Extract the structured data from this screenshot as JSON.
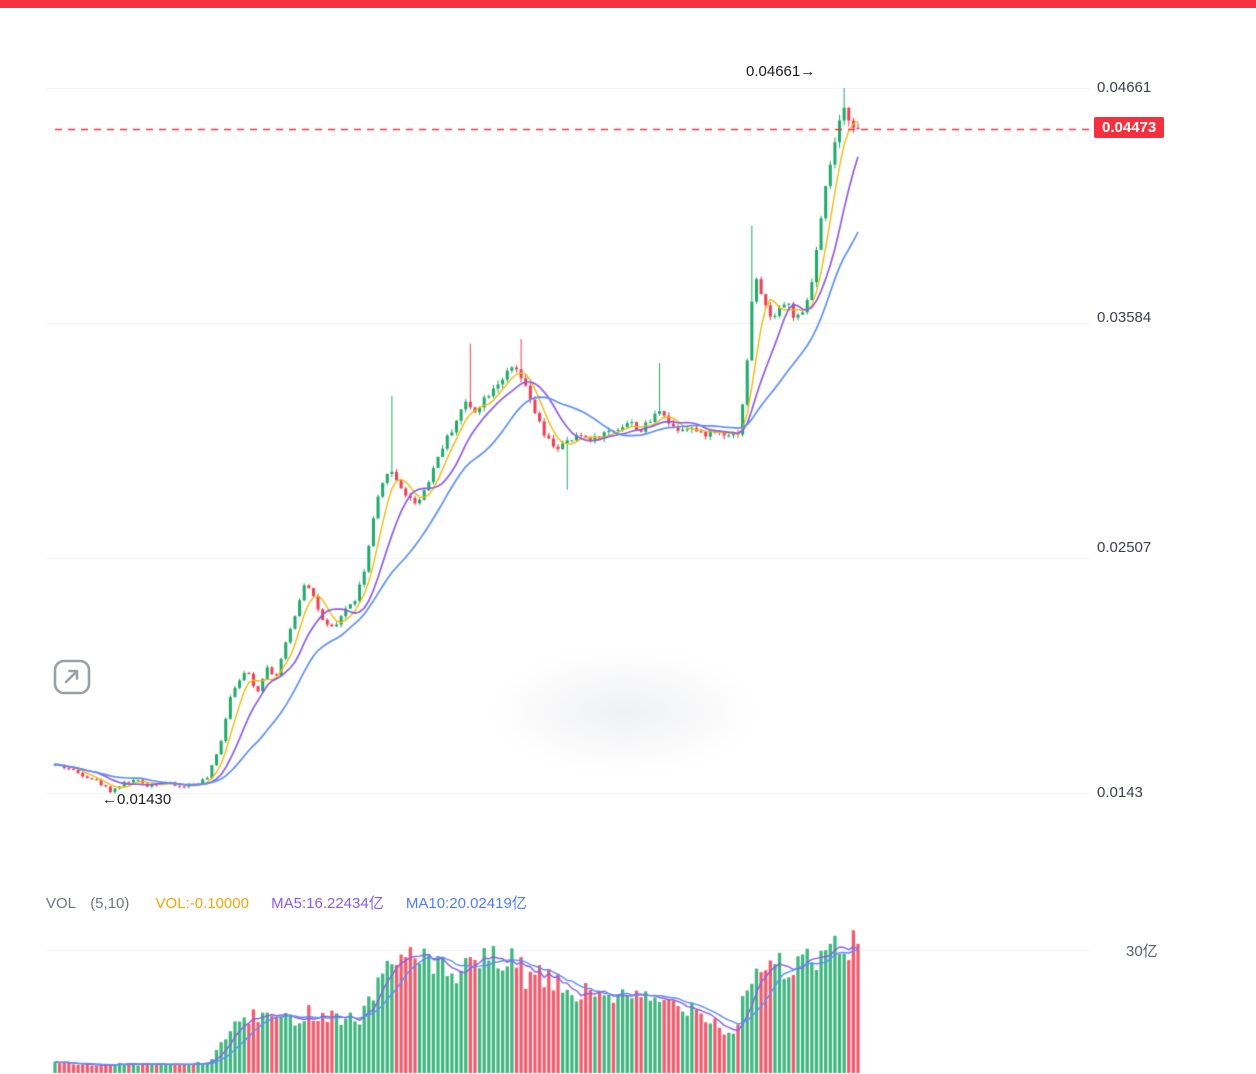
{
  "ui": {
    "top_bar_color": "#f5303e",
    "price_axis": {
      "ticks": [
        {
          "label": "0.04661",
          "value": 0.04661
        },
        {
          "label": "0.03584",
          "value": 0.03584
        },
        {
          "label": "0.02507",
          "value": 0.02507
        },
        {
          "label": "0.0143",
          "value": 0.0143
        }
      ]
    },
    "last_price_tag": {
      "label": "0.04473",
      "value": 0.04473,
      "bg": "#f5303e",
      "fg": "#ffffff"
    },
    "high_annotation": {
      "label": "0.04661→",
      "value": 0.04661
    },
    "low_annotation": {
      "label": "←0.01430",
      "value": 0.0143
    },
    "expand_button": {
      "icon": "expand-icon"
    },
    "volume_header": {
      "indicator": "VOL",
      "params": "(5,10)",
      "vol_label": "VOL:-0.10000",
      "ma5_label": "MA5:16.22434亿",
      "ma10_label": "MA10:20.02419亿",
      "colors": {
        "vol": "#f0a70a",
        "ma5": "#8b5ce8",
        "ma10": "#4f7df0"
      }
    },
    "volume_axis_tick": "30亿"
  },
  "chart_data": {
    "type": "candlestick",
    "title": "",
    "xlabel": "",
    "ylabel": "",
    "ylim": [
      0.0138,
      0.0475
    ],
    "y_ticks": [
      0.04661,
      0.03584,
      0.02507,
      0.0143
    ],
    "grid": true,
    "last_price": 0.04473,
    "session_high": 0.04661,
    "session_low": 0.0143,
    "candle_count": 175,
    "price_ma_periods": [
      5,
      10,
      20
    ],
    "volume_ma_periods": [
      5,
      10
    ],
    "volume_tick_value": 30,
    "volume_unit": "亿",
    "volume_last_ma5": 16.22434,
    "volume_last_ma10": 20.02419,
    "colors": {
      "up": "#1fa96a",
      "down": "#ee3e53",
      "ma_fast": "#f0b90b",
      "ma_mid": "#8b5ce8",
      "ma_slow": "#5b8ff9",
      "last_price_line": "#f5303e",
      "grid": "#f0f0f2"
    },
    "price_path": [
      [
        0.0,
        0.0156
      ],
      [
        0.015,
        0.01545
      ],
      [
        0.03,
        0.0152
      ],
      [
        0.05,
        0.0149
      ],
      [
        0.07,
        0.01438
      ],
      [
        0.085,
        0.01475
      ],
      [
        0.1,
        0.0149
      ],
      [
        0.115,
        0.01465
      ],
      [
        0.135,
        0.0148
      ],
      [
        0.155,
        0.01458
      ],
      [
        0.175,
        0.0147
      ],
      [
        0.19,
        0.015
      ],
      [
        0.205,
        0.0164
      ],
      [
        0.218,
        0.0187
      ],
      [
        0.228,
        0.0195
      ],
      [
        0.24,
        0.01985
      ],
      [
        0.252,
        0.0189
      ],
      [
        0.263,
        0.0201
      ],
      [
        0.275,
        0.0196
      ],
      [
        0.288,
        0.0212
      ],
      [
        0.3,
        0.0226
      ],
      [
        0.312,
        0.0241
      ],
      [
        0.322,
        0.0233
      ],
      [
        0.335,
        0.022
      ],
      [
        0.348,
        0.0218
      ],
      [
        0.36,
        0.0227
      ],
      [
        0.372,
        0.023
      ],
      [
        0.385,
        0.0244
      ],
      [
        0.4,
        0.0275
      ],
      [
        0.415,
        0.0292
      ],
      [
        0.428,
        0.0285
      ],
      [
        0.44,
        0.0278
      ],
      [
        0.452,
        0.0276
      ],
      [
        0.465,
        0.0286
      ],
      [
        0.48,
        0.03
      ],
      [
        0.495,
        0.031
      ],
      [
        0.51,
        0.0322
      ],
      [
        0.522,
        0.0318
      ],
      [
        0.535,
        0.0324
      ],
      [
        0.548,
        0.033
      ],
      [
        0.56,
        0.0334
      ],
      [
        0.572,
        0.0338
      ],
      [
        0.582,
        0.0332
      ],
      [
        0.595,
        0.032
      ],
      [
        0.61,
        0.0306
      ],
      [
        0.625,
        0.0301
      ],
      [
        0.64,
        0.0304
      ],
      [
        0.655,
        0.0307
      ],
      [
        0.67,
        0.0305
      ],
      [
        0.685,
        0.0308
      ],
      [
        0.7,
        0.031
      ],
      [
        0.715,
        0.0313
      ],
      [
        0.73,
        0.0309
      ],
      [
        0.745,
        0.0315
      ],
      [
        0.755,
        0.032
      ],
      [
        0.765,
        0.0312
      ],
      [
        0.775,
        0.031
      ],
      [
        0.79,
        0.0311
      ],
      [
        0.805,
        0.0307
      ],
      [
        0.82,
        0.0309
      ],
      [
        0.835,
        0.0308
      ],
      [
        0.85,
        0.0307
      ],
      [
        0.86,
        0.033
      ],
      [
        0.87,
        0.038
      ],
      [
        0.88,
        0.0372
      ],
      [
        0.89,
        0.036
      ],
      [
        0.9,
        0.0365
      ],
      [
        0.912,
        0.0368
      ],
      [
        0.922,
        0.036
      ],
      [
        0.932,
        0.0362
      ],
      [
        0.942,
        0.0376
      ],
      [
        0.952,
        0.04
      ],
      [
        0.962,
        0.0425
      ],
      [
        0.972,
        0.0442
      ],
      [
        0.982,
        0.0456
      ],
      [
        0.99,
        0.0452
      ],
      [
        1.0,
        0.04473
      ]
    ],
    "wick_spikes": [
      {
        "f": 0.07,
        "low": 0.0143
      },
      {
        "f": 0.418,
        "high": 0.0325
      },
      {
        "f": 0.517,
        "high": 0.0349
      },
      {
        "f": 0.578,
        "high": 0.0351
      },
      {
        "f": 0.64,
        "low": 0.0282
      },
      {
        "f": 0.752,
        "high": 0.034
      },
      {
        "f": 0.87,
        "high": 0.0403
      },
      {
        "f": 0.985,
        "high": 0.04661
      }
    ],
    "volume_path": [
      [
        0.0,
        2.5
      ],
      [
        0.05,
        2.0
      ],
      [
        0.1,
        2.2
      ],
      [
        0.15,
        2.0
      ],
      [
        0.19,
        2.5
      ],
      [
        0.215,
        9
      ],
      [
        0.23,
        13
      ],
      [
        0.26,
        14
      ],
      [
        0.29,
        13
      ],
      [
        0.32,
        15
      ],
      [
        0.35,
        14
      ],
      [
        0.38,
        13
      ],
      [
        0.4,
        22
      ],
      [
        0.43,
        28
      ],
      [
        0.45,
        31
      ],
      [
        0.47,
        26
      ],
      [
        0.5,
        23
      ],
      [
        0.53,
        27
      ],
      [
        0.56,
        28
      ],
      [
        0.585,
        24
      ],
      [
        0.62,
        22
      ],
      [
        0.65,
        19
      ],
      [
        0.68,
        20
      ],
      [
        0.71,
        18
      ],
      [
        0.74,
        18
      ],
      [
        0.77,
        17
      ],
      [
        0.8,
        16
      ],
      [
        0.82,
        13
      ],
      [
        0.845,
        9
      ],
      [
        0.862,
        22
      ],
      [
        0.88,
        26
      ],
      [
        0.9,
        27
      ],
      [
        0.92,
        25
      ],
      [
        0.94,
        27
      ],
      [
        0.96,
        29
      ],
      [
        0.98,
        30
      ],
      [
        1.0,
        31.5
      ]
    ]
  }
}
